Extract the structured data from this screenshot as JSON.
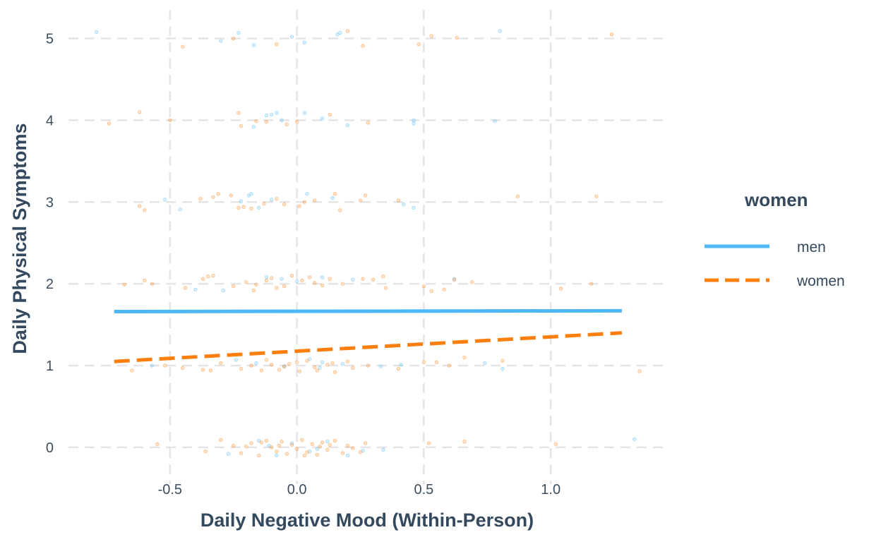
{
  "chart_data": {
    "type": "scatter",
    "xlabel": "Daily Negative Mood (Within-Person)",
    "ylabel": "Daily Physical Symptoms",
    "xlim": [
      -0.9,
      1.45
    ],
    "ylim": [
      -0.45,
      5.35
    ],
    "x_ticks": [
      -0.5,
      0.0,
      0.5,
      1.0
    ],
    "x_tick_labels": [
      "-0.5",
      "0.0",
      "0.5",
      "1.0"
    ],
    "y_ticks": [
      0,
      1,
      2,
      3,
      4,
      5
    ],
    "y_tick_labels": [
      "0",
      "1",
      "2",
      "3",
      "4",
      "5"
    ],
    "grid": true,
    "grid_style": "dashed",
    "legend": {
      "title": "women",
      "placement": "right",
      "entries": [
        {
          "label": "men",
          "color": "#4db8f5",
          "line": "solid"
        },
        {
          "label": "women",
          "color": "#ff7f0e",
          "line": "dashed"
        }
      ]
    },
    "series": [
      {
        "name": "men",
        "color": "#4db8f5",
        "line": "solid",
        "fit_line": {
          "x": [
            -0.72,
            1.28
          ],
          "y": [
            1.66,
            1.67
          ]
        },
        "points": [
          [
            -0.79,
            5.08
          ],
          [
            -0.3,
            4.97
          ],
          [
            -0.23,
            5.07
          ],
          [
            -0.17,
            4.92
          ],
          [
            -0.02,
            5.02
          ],
          [
            0.03,
            4.95
          ],
          [
            0.16,
            5.05
          ],
          [
            0.17,
            5.07
          ],
          [
            0.8,
            5.09
          ],
          [
            -0.12,
            4.06
          ],
          [
            -0.1,
            4.07
          ],
          [
            -0.08,
            4.09
          ],
          [
            -0.06,
            4.0
          ],
          [
            -0.17,
            3.92
          ],
          [
            0.03,
            4.09
          ],
          [
            0.1,
            4.02
          ],
          [
            0.2,
            3.94
          ],
          [
            0.46,
            4.0
          ],
          [
            0.46,
            3.96
          ],
          [
            0.78,
            3.99
          ],
          [
            -0.22,
            3.01
          ],
          [
            -0.19,
            3.08
          ],
          [
            -0.18,
            3.1
          ],
          [
            -0.15,
            2.93
          ],
          [
            -0.1,
            3.03
          ],
          [
            0.04,
            3.1
          ],
          [
            0.14,
            3.05
          ],
          [
            0.42,
            2.97
          ],
          [
            0.46,
            2.93
          ],
          [
            -0.46,
            2.91
          ],
          [
            -0.52,
            3.03
          ],
          [
            -0.12,
            2.08
          ],
          [
            -0.06,
            2.06
          ],
          [
            0.0,
            2.03
          ],
          [
            0.1,
            2.08
          ],
          [
            -0.29,
            1.92
          ],
          [
            0.22,
            2.05
          ],
          [
            0.62,
            2.06
          ],
          [
            -0.4,
            1.93
          ],
          [
            -0.24,
            1.07
          ],
          [
            -0.16,
            1.03
          ],
          [
            -0.05,
            0.99
          ],
          [
            0.05,
            1.08
          ],
          [
            0.09,
            0.97
          ],
          [
            0.18,
            1.02
          ],
          [
            0.33,
            0.99
          ],
          [
            0.41,
            1.01
          ],
          [
            0.74,
            1.03
          ],
          [
            0.81,
            0.96
          ],
          [
            -0.57,
            1.0
          ],
          [
            0.1,
            1.04
          ],
          [
            -0.27,
            -0.08
          ],
          [
            -0.15,
            0.08
          ],
          [
            -0.08,
            -0.1
          ],
          [
            -0.02,
            0.05
          ],
          [
            0.05,
            -0.05
          ],
          [
            0.12,
            0.07
          ],
          [
            0.2,
            -0.1
          ],
          [
            0.26,
            -0.04
          ],
          [
            0.34,
            -0.03
          ],
          [
            1.33,
            0.1
          ],
          [
            -0.11,
            0.02
          ],
          [
            0.08,
            -0.02
          ]
        ]
      },
      {
        "name": "women",
        "color": "#ff7f0e",
        "line": "dashed",
        "fit_line": {
          "x": [
            -0.72,
            1.28
          ],
          "y": [
            1.05,
            1.4
          ]
        },
        "points": [
          [
            -0.45,
            4.9
          ],
          [
            -0.25,
            5.0
          ],
          [
            -0.08,
            4.93
          ],
          [
            0.2,
            5.09
          ],
          [
            0.26,
            4.91
          ],
          [
            0.48,
            4.93
          ],
          [
            0.53,
            5.03
          ],
          [
            0.63,
            5.01
          ],
          [
            1.24,
            5.05
          ],
          [
            -0.74,
            3.96
          ],
          [
            -0.62,
            4.1
          ],
          [
            -0.5,
            4.0
          ],
          [
            -0.23,
            4.09
          ],
          [
            -0.22,
            3.93
          ],
          [
            -0.16,
            3.99
          ],
          [
            -0.04,
            3.95
          ],
          [
            0.0,
            3.98
          ],
          [
            0.13,
            4.07
          ],
          [
            0.28,
            3.97
          ],
          [
            -0.12,
            3.98
          ],
          [
            -0.62,
            2.95
          ],
          [
            -0.6,
            2.9
          ],
          [
            -0.38,
            3.04
          ],
          [
            -0.33,
            3.06
          ],
          [
            -0.31,
            3.1
          ],
          [
            -0.26,
            3.08
          ],
          [
            -0.23,
            2.93
          ],
          [
            -0.21,
            2.94
          ],
          [
            -0.18,
            2.92
          ],
          [
            -0.08,
            3.04
          ],
          [
            -0.05,
            2.97
          ],
          [
            0.01,
            2.95
          ],
          [
            0.07,
            3.02
          ],
          [
            0.15,
            3.1
          ],
          [
            0.17,
            2.9
          ],
          [
            0.25,
            3.02
          ],
          [
            0.27,
            3.08
          ],
          [
            0.4,
            3.02
          ],
          [
            0.87,
            3.07
          ],
          [
            1.18,
            3.07
          ],
          [
            -0.13,
            2.98
          ],
          [
            0.03,
            3.0
          ],
          [
            -0.68,
            1.99
          ],
          [
            -0.6,
            2.04
          ],
          [
            -0.57,
            2.0
          ],
          [
            -0.44,
            1.95
          ],
          [
            -0.37,
            2.06
          ],
          [
            -0.35,
            2.09
          ],
          [
            -0.33,
            2.1
          ],
          [
            -0.25,
            1.97
          ],
          [
            -0.2,
            2.02
          ],
          [
            -0.16,
            1.99
          ],
          [
            -0.12,
            2.04
          ],
          [
            -0.1,
            2.07
          ],
          [
            -0.05,
            1.97
          ],
          [
            -0.02,
            2.1
          ],
          [
            0.02,
            2.04
          ],
          [
            0.07,
            2.01
          ],
          [
            0.13,
            2.06
          ],
          [
            0.18,
            2.0
          ],
          [
            0.26,
            2.06
          ],
          [
            0.34,
            2.09
          ],
          [
            0.35,
            1.95
          ],
          [
            0.5,
            1.97
          ],
          [
            0.53,
            1.91
          ],
          [
            0.58,
            1.93
          ],
          [
            0.62,
            2.05
          ],
          [
            0.69,
            2.02
          ],
          [
            1.04,
            1.94
          ],
          [
            1.16,
            2.0
          ],
          [
            -0.17,
            1.92
          ],
          [
            0.1,
            1.98
          ],
          [
            0.3,
            2.05
          ],
          [
            -0.08,
            1.95
          ],
          [
            0.05,
            2.08
          ],
          [
            -0.65,
            0.94
          ],
          [
            -0.52,
            1.0
          ],
          [
            -0.45,
            0.97
          ],
          [
            -0.37,
            0.95
          ],
          [
            -0.34,
            0.94
          ],
          [
            -0.3,
            1.03
          ],
          [
            -0.22,
            0.96
          ],
          [
            -0.18,
            1.0
          ],
          [
            -0.14,
            0.94
          ],
          [
            -0.1,
            1.01
          ],
          [
            -0.07,
            0.95
          ],
          [
            -0.03,
            1.02
          ],
          [
            0.01,
            0.93
          ],
          [
            0.04,
            1.06
          ],
          [
            0.07,
            0.98
          ],
          [
            0.12,
            1.01
          ],
          [
            0.15,
            0.92
          ],
          [
            0.22,
            0.97
          ],
          [
            0.28,
            1.0
          ],
          [
            0.4,
            0.96
          ],
          [
            0.5,
            1.04
          ],
          [
            0.55,
            1.04
          ],
          [
            0.6,
            1.0
          ],
          [
            0.66,
            1.1
          ],
          [
            0.81,
            1.06
          ],
          [
            1.35,
            0.93
          ],
          [
            -0.12,
            1.07
          ],
          [
            0.0,
            1.04
          ],
          [
            0.08,
            0.94
          ],
          [
            0.2,
            1.05
          ],
          [
            -0.05,
            0.99
          ],
          [
            0.14,
            1.03
          ],
          [
            -0.55,
            0.04
          ],
          [
            -0.36,
            -0.05
          ],
          [
            -0.3,
            0.09
          ],
          [
            -0.25,
            0.02
          ],
          [
            -0.22,
            -0.07
          ],
          [
            -0.18,
            0.05
          ],
          [
            -0.15,
            -0.1
          ],
          [
            -0.12,
            0.08
          ],
          [
            -0.1,
            0.0
          ],
          [
            -0.08,
            -0.05
          ],
          [
            -0.06,
            0.07
          ],
          [
            -0.04,
            -0.08
          ],
          [
            -0.02,
            0.03
          ],
          [
            0.0,
            -0.02
          ],
          [
            0.02,
            0.09
          ],
          [
            0.04,
            -0.06
          ],
          [
            0.06,
            0.04
          ],
          [
            0.08,
            -0.09
          ],
          [
            0.1,
            0.06
          ],
          [
            0.12,
            -0.03
          ],
          [
            0.15,
            0.08
          ],
          [
            0.18,
            -0.07
          ],
          [
            0.2,
            0.02
          ],
          [
            0.25,
            -0.06
          ],
          [
            0.27,
            0.05
          ],
          [
            0.52,
            0.05
          ],
          [
            0.66,
            0.07
          ],
          [
            1.02,
            0.04
          ],
          [
            -0.2,
            0.01
          ],
          [
            -0.14,
            0.06
          ],
          [
            0.03,
            -0.1
          ],
          [
            0.13,
            0.03
          ],
          [
            0.22,
            -0.01
          ],
          [
            -0.07,
            0.02
          ],
          [
            0.09,
            0.01
          ]
        ]
      }
    ]
  }
}
